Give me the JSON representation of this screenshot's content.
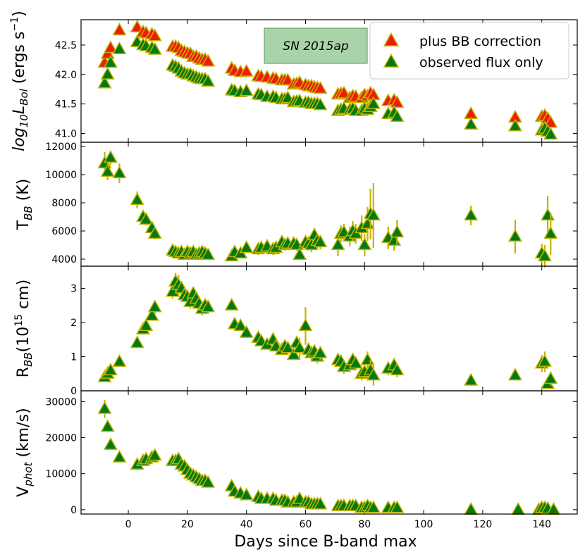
{
  "chart_data": {
    "type": "scatter",
    "xlabel": "Days since B-band max",
    "xlim": [
      -16,
      152
    ],
    "xticks": [
      0,
      20,
      40,
      60,
      80,
      100,
      120,
      140
    ],
    "xtick_labels": [
      "0",
      "20",
      "40",
      "60",
      "80",
      "100",
      "120",
      "140"
    ],
    "colors": {
      "red_fill": "#ee1c0a",
      "green_fill": "#007a12",
      "marker_edge": "#c4b400",
      "error_bar": "#c4b400",
      "annotation_fill": "#a9d4a9",
      "annotation_edge": "#6aa66a"
    },
    "panels": [
      {
        "id": "lbol",
        "ylabel_base": "log",
        "ylabel_sub": "10",
        "ylabel_var": "L",
        "ylabel_varsub": "Bol",
        "ylabel_unit": "(ergs s",
        "ylabel_sup": "−1",
        "ylabel_close": ")",
        "ylim": [
          40.85,
          42.93
        ],
        "yticks": [
          41.0,
          41.5,
          42.0,
          42.5
        ],
        "ytick_labels": [
          "41.0",
          "41.5",
          "42.0",
          "42.5"
        ],
        "annotation": "SN 2015ap",
        "legend": [
          "plus BB correction",
          "observed flux only"
        ],
        "series": [
          {
            "name": "plus BB correction",
            "x": [
              -8,
              -7,
              -6,
              -3,
              3,
              5,
              6,
              8,
              9,
              15,
              16,
              17,
              18,
              19,
              20,
              21,
              22,
              23,
              24,
              25,
              26,
              27,
              35,
              36,
              38,
              40,
              44,
              45,
              47,
              49,
              50,
              52,
              53,
              54,
              56,
              57,
              58,
              60,
              61,
              62,
              63,
              64,
              65,
              71,
              72,
              73,
              75,
              76,
              77,
              79,
              80,
              81,
              82,
              83,
              88,
              90,
              91,
              116,
              131,
              140,
              141,
              142,
              143
            ],
            "y": [
              42.2,
              42.35,
              42.45,
              42.75,
              42.8,
              42.72,
              42.7,
              42.68,
              42.65,
              42.47,
              42.47,
              42.45,
              42.4,
              42.38,
              42.36,
              42.35,
              42.3,
              42.3,
              42.27,
              42.25,
              42.25,
              42.22,
              42.1,
              42.06,
              42.04,
              42.05,
              41.97,
              41.96,
              41.95,
              41.93,
              41.92,
              41.9,
              41.9,
              41.9,
              41.83,
              41.84,
              41.86,
              41.82,
              41.8,
              41.8,
              41.78,
              41.77,
              41.76,
              41.66,
              41.67,
              41.68,
              41.6,
              41.63,
              41.62,
              41.6,
              41.65,
              41.63,
              41.68,
              41.65,
              41.55,
              41.56,
              41.52,
              41.33,
              41.27,
              41.28,
              41.3,
              41.25,
              41.18
            ]
          },
          {
            "name": "observed flux only",
            "x": [
              -8,
              -7,
              -6,
              -3,
              3,
              5,
              6,
              8,
              9,
              15,
              16,
              17,
              18,
              19,
              20,
              21,
              22,
              23,
              24,
              25,
              26,
              27,
              35,
              36,
              38,
              40,
              44,
              45,
              47,
              49,
              50,
              52,
              53,
              54,
              56,
              57,
              58,
              60,
              61,
              62,
              63,
              64,
              65,
              71,
              72,
              73,
              75,
              76,
              77,
              79,
              80,
              81,
              82,
              83,
              88,
              90,
              91,
              116,
              131,
              140,
              141,
              142,
              143
            ],
            "y": [
              41.85,
              42.0,
              42.2,
              42.43,
              42.55,
              42.5,
              42.48,
              42.45,
              42.42,
              42.15,
              42.13,
              42.1,
              42.05,
              42.02,
              42.0,
              42.0,
              41.97,
              41.95,
              41.93,
              41.92,
              41.92,
              41.88,
              41.73,
              41.72,
              41.7,
              41.72,
              41.66,
              41.65,
              41.62,
              41.62,
              41.6,
              41.58,
              41.58,
              41.6,
              41.53,
              41.54,
              41.55,
              41.52,
              41.52,
              41.5,
              41.5,
              41.5,
              41.48,
              41.38,
              41.4,
              41.42,
              41.4,
              41.42,
              41.38,
              41.38,
              41.42,
              41.4,
              41.45,
              41.5,
              41.33,
              41.35,
              41.28,
              41.15,
              41.12,
              41.05,
              41.08,
              41.03,
              40.98
            ]
          }
        ]
      },
      {
        "id": "tbb",
        "ylabel_base": "T",
        "ylabel_sub": "BB",
        "ylabel_unit": " (K)",
        "ylim": [
          3500,
          12300
        ],
        "yticks": [
          4000,
          6000,
          8000,
          10000,
          12000
        ],
        "ytick_labels": [
          "4000",
          "6000",
          "8000",
          "10000",
          "12000"
        ],
        "series": [
          {
            "name": "T_BB",
            "x": [
              -8,
              -7,
              -6,
              -3,
              3,
              5,
              6,
              8,
              9,
              15,
              16,
              17,
              18,
              19,
              20,
              21,
              22,
              23,
              24,
              25,
              26,
              27,
              35,
              36,
              38,
              40,
              44,
              45,
              47,
              49,
              50,
              52,
              53,
              54,
              56,
              57,
              58,
              60,
              61,
              62,
              63,
              64,
              65,
              71,
              72,
              73,
              75,
              76,
              77,
              79,
              80,
              81,
              82,
              83,
              88,
              90,
              91,
              116,
              131,
              140,
              141,
              142,
              143
            ],
            "y": [
              10800,
              10200,
              11200,
              10100,
              8200,
              7000,
              6800,
              6200,
              5800,
              4600,
              4500,
              4400,
              4500,
              4300,
              4500,
              4400,
              4500,
              4300,
              4400,
              4500,
              4400,
              4300,
              4200,
              4500,
              4400,
              4800,
              4700,
              4800,
              4900,
              4700,
              4800,
              5200,
              5000,
              5100,
              5100,
              5000,
              4300,
              5200,
              5100,
              5000,
              5700,
              5300,
              5200,
              5000,
              5800,
              5900,
              5600,
              6000,
              5800,
              6200,
              5000,
              6500,
              7200,
              7100,
              5500,
              5300,
              5900,
              7100,
              5600,
              4400,
              4200,
              7100,
              5800
            ],
            "err": [
              800,
              600,
              500,
              700,
              600,
              400,
              400,
              400,
              400,
              300,
              300,
              300,
              300,
              300,
              300,
              300,
              300,
              300,
              300,
              300,
              300,
              300,
              300,
              300,
              300,
              300,
              400,
              400,
              400,
              400,
              400,
              500,
              400,
              400,
              400,
              400,
              300,
              500,
              500,
              500,
              500,
              500,
              500,
              800,
              600,
              600,
              700,
              700,
              700,
              900,
              800,
              1200,
              1800,
              2300,
              800,
              700,
              900,
              700,
              1200,
              700,
              800,
              1400,
              1500
            ]
          }
        ]
      },
      {
        "id": "rbb",
        "ylabel_base": "R",
        "ylabel_sub": "BB",
        "ylabel_unit": "(10",
        "ylabel_sup": "15",
        "ylabel_close": " cm)",
        "ylim": [
          0,
          3.65
        ],
        "yticks": [
          0,
          1,
          2,
          3
        ],
        "ytick_labels": [
          "0",
          "1",
          "2",
          "3"
        ],
        "series": [
          {
            "name": "R_BB",
            "x": [
              -8,
              -7,
              -6,
              -3,
              3,
              5,
              6,
              8,
              9,
              15,
              16,
              17,
              18,
              19,
              20,
              21,
              22,
              23,
              24,
              25,
              26,
              27,
              35,
              36,
              38,
              40,
              44,
              45,
              47,
              49,
              50,
              52,
              53,
              54,
              56,
              57,
              58,
              60,
              61,
              62,
              63,
              64,
              65,
              71,
              72,
              73,
              75,
              76,
              77,
              79,
              80,
              81,
              82,
              83,
              88,
              90,
              91,
              116,
              131,
              140,
              141,
              142,
              143
            ],
            "y": [
              0.4,
              0.5,
              0.6,
              0.85,
              1.4,
              1.8,
              1.9,
              2.2,
              2.45,
              2.9,
              3.2,
              3.1,
              3.0,
              2.8,
              2.75,
              2.6,
              2.85,
              2.7,
              2.55,
              2.4,
              2.5,
              2.45,
              2.5,
              1.95,
              1.9,
              1.7,
              1.55,
              1.45,
              1.35,
              1.5,
              1.3,
              1.2,
              1.3,
              1.25,
              1.05,
              1.4,
              1.25,
              1.9,
              1.2,
              1.1,
              1.15,
              1.0,
              1.1,
              0.9,
              0.85,
              0.7,
              0.75,
              0.9,
              0.8,
              0.5,
              0.55,
              0.9,
              0.6,
              0.45,
              0.65,
              0.75,
              0.6,
              0.3,
              0.45,
              0.8,
              0.85,
              0.2,
              0.35
            ],
            "err": [
              0.1,
              0.1,
              0.1,
              0.1,
              0.1,
              0.15,
              0.15,
              0.15,
              0.2,
              0.2,
              0.25,
              0.3,
              0.2,
              0.2,
              0.2,
              0.2,
              0.2,
              0.2,
              0.2,
              0.2,
              0.2,
              0.2,
              0.15,
              0.15,
              0.15,
              0.15,
              0.15,
              0.15,
              0.15,
              0.15,
              0.15,
              0.15,
              0.15,
              0.15,
              0.15,
              0.2,
              0.3,
              0.55,
              0.2,
              0.2,
              0.2,
              0.2,
              0.2,
              0.2,
              0.2,
              0.2,
              0.2,
              0.2,
              0.2,
              0.2,
              0.2,
              0.25,
              0.3,
              0.3,
              0.2,
              0.2,
              0.2,
              0.15,
              0.15,
              0.25,
              0.3,
              0.15,
              0.2
            ]
          }
        ]
      },
      {
        "id": "vphot",
        "ylabel_base": "V",
        "ylabel_sub": "phot",
        "ylabel_unit": " (km/s)",
        "ylim": [
          -1200,
          33000
        ],
        "yticks": [
          0,
          10000,
          20000,
          30000
        ],
        "ytick_labels": [
          "0",
          "10000",
          "20000",
          "30000"
        ],
        "series": [
          {
            "name": "V_phot",
            "x": [
              -8,
              -7,
              -6,
              -3,
              3,
              5,
              6,
              8,
              9,
              15,
              16,
              17,
              18,
              19,
              20,
              21,
              22,
              23,
              24,
              25,
              26,
              27,
              35,
              36,
              38,
              40,
              44,
              45,
              47,
              49,
              50,
              52,
              53,
              54,
              56,
              57,
              58,
              60,
              61,
              62,
              63,
              64,
              65,
              71,
              72,
              73,
              75,
              76,
              77,
              79,
              80,
              81,
              82,
              83,
              88,
              90,
              91,
              116,
              132,
              139,
              140,
              141,
              142,
              144
            ],
            "y": [
              28000,
              23000,
              18000,
              14500,
              12500,
              13500,
              14000,
              14500,
              15000,
              13500,
              13500,
              14000,
              12500,
              12000,
              11000,
              10000,
              9500,
              9000,
              8500,
              8000,
              8000,
              7500,
              6500,
              5000,
              4500,
              4000,
              3500,
              3000,
              3000,
              3000,
              2500,
              2500,
              2500,
              2000,
              2000,
              2000,
              3000,
              2000,
              2000,
              1500,
              1500,
              1500,
              1500,
              1000,
              1000,
              1000,
              1000,
              1000,
              1000,
              500,
              500,
              1000,
              500,
              500,
              500,
              500,
              500,
              0,
              0,
              0,
              500,
              500,
              300,
              0
            ],
            "err": [
              2500,
              1500,
              1000,
              800,
              800,
              800,
              800,
              800,
              800,
              800,
              800,
              800,
              800,
              800,
              700,
              700,
              700,
              600,
              600,
              600,
              600,
              600,
              900,
              600,
              600,
              600,
              600,
              500,
              500,
              500,
              500,
              500,
              500,
              500,
              500,
              500,
              800,
              500,
              500,
              500,
              500,
              500,
              500,
              400,
              400,
              400,
              400,
              400,
              400,
              400,
              400,
              400,
              400,
              400,
              400,
              400,
              400,
              300,
              300,
              300,
              400,
              400,
              300,
              300
            ]
          }
        ]
      }
    ]
  }
}
